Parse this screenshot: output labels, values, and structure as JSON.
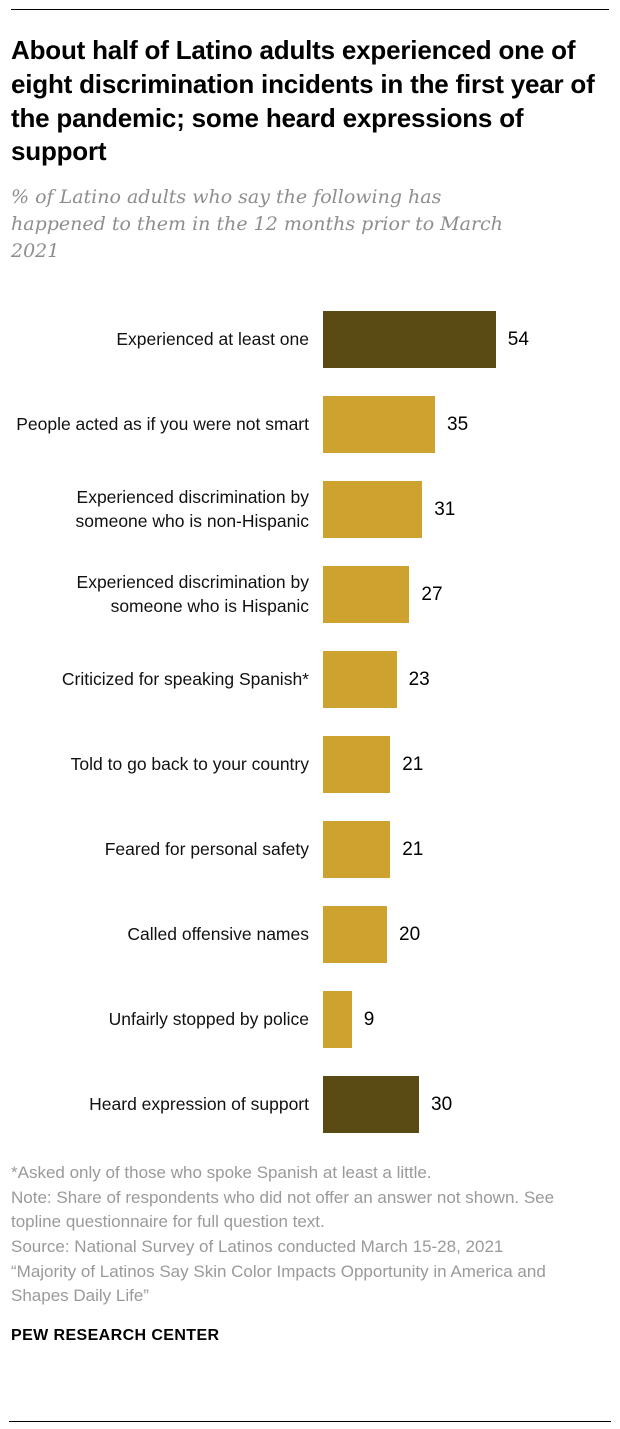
{
  "chart_data": {
    "type": "bar",
    "orientation": "horizontal",
    "title": "About half of Latino adults experienced one of eight discrimination incidents in the first year of the pandemic; some heard expressions of support",
    "subtitle": "% of Latino adults who say the following has happened to them in the 12 months prior to March 2021",
    "categories": [
      "Experienced at least one",
      "People acted as if you were not smart",
      "Experienced discrimination by someone who is non-Hispanic",
      "Experienced discrimination by someone who is Hispanic",
      "Criticized for speaking Spanish*",
      "Told to go back to your country",
      "Feared for personal safety",
      "Called offensive names",
      "Unfairly stopped by police",
      "Heard expression of support"
    ],
    "values": [
      54,
      35,
      31,
      27,
      23,
      21,
      21,
      20,
      9,
      30
    ],
    "bar_colors": [
      "dark",
      "gold",
      "gold",
      "gold",
      "gold",
      "gold",
      "gold",
      "gold",
      "gold",
      "dark"
    ],
    "colors": {
      "gold": "#cda22f",
      "dark": "#5a4a14"
    },
    "xlim": [
      0,
      80
    ],
    "value_labels": true,
    "legend": false,
    "grid": false
  },
  "footer": {
    "notes": [
      "*Asked only of those who spoke Spanish at least a little.",
      "Note: Share of respondents who did not offer an answer not shown. See topline questionnaire for full question text.",
      "Source: National Survey of Latinos conducted March 15-28, 2021",
      "“Majority of Latinos Say Skin Color Impacts Opportunity in America and Shapes Daily Life”"
    ],
    "brand": "PEW RESEARCH CENTER"
  }
}
